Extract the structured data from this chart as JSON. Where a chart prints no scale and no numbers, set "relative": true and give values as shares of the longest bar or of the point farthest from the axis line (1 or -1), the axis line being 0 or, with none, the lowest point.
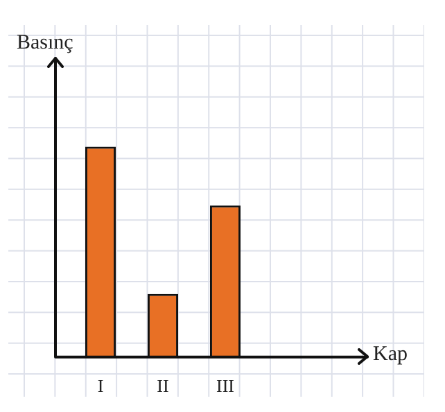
{
  "chart_data": {
    "type": "bar",
    "relative": true,
    "ylabel": "Basınç",
    "categories": [
      "I",
      "II",
      "III"
    ],
    "values": [
      1,
      0.3,
      0.72
    ],
    "annotations": [
      "Kap"
    ],
    "color": "#e87025",
    "legend": false
  }
}
